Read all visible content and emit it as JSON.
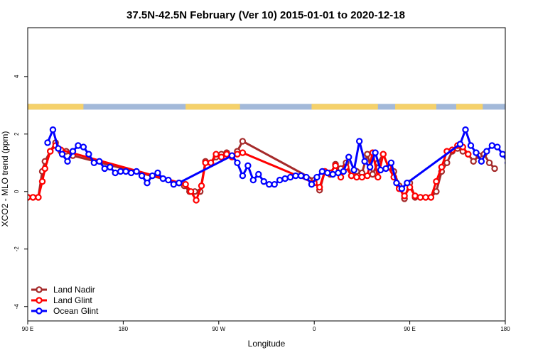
{
  "chart_data": {
    "type": "line",
    "title": "37.5N-42.5N February (Ver 10)   2015-01-01 to 2020-12-18",
    "xlabel": "Longitude",
    "ylabel": "XCO2 - MLO trend (ppm)",
    "xlim": [
      90,
      450
    ],
    "ylim": [
      -4.5,
      5.7
    ],
    "x_ticks": [
      {
        "value": 90,
        "label": "90 E"
      },
      {
        "value": 162,
        "label": "180"
      },
      {
        "value": 234,
        "label": "90 W"
      },
      {
        "value": 306,
        "label": "0"
      },
      {
        "value": 378,
        "label": "90 E"
      },
      {
        "value": 450,
        "label": "180"
      }
    ],
    "y_ticks": [
      {
        "value": -4,
        "label": "-4"
      },
      {
        "value": -2,
        "label": "-2"
      },
      {
        "value": 0,
        "label": "0"
      },
      {
        "value": 2,
        "label": "2"
      },
      {
        "value": 4,
        "label": "4"
      }
    ],
    "grid": false,
    "legend_position": "bottom-left",
    "land_strip": {
      "y_range": [
        2.85,
        3.05
      ],
      "ocean_color": "#a3b9d9",
      "land_color": "#f5d16b",
      "land_segments": [
        [
          90,
          131
        ],
        [
          101,
          132
        ],
        [
          209,
          250
        ],
        [
          304,
          354
        ],
        [
          367,
          398
        ],
        [
          413,
          433
        ]
      ]
    },
    "series": [
      {
        "name": "Land Nadir",
        "color": "#a52a2a",
        "x": [
          90,
          94,
          98,
          101,
          103,
          107,
          111,
          115,
          119,
          124,
          204,
          208,
          212,
          216,
          220,
          224,
          228,
          232,
          236,
          240,
          244,
          248,
          252,
          306,
          310,
          314,
          318,
          322,
          326,
          330,
          334,
          338,
          342,
          346,
          350,
          354,
          358,
          362,
          366,
          370,
          374,
          378,
          382,
          386,
          390,
          394,
          398,
          402,
          406,
          410,
          414,
          418,
          422,
          426,
          430,
          434,
          438,
          442
        ],
        "y": [
          -0.2,
          -0.2,
          -0.2,
          0.7,
          1.05,
          1.4,
          1.7,
          1.4,
          1.4,
          1.25,
          0.3,
          0.2,
          0.0,
          0.0,
          0.0,
          1.05,
          1.0,
          1.2,
          1.3,
          1.35,
          1.25,
          1.4,
          1.75,
          0.4,
          0.05,
          0.7,
          0.6,
          0.95,
          0.8,
          1.0,
          0.55,
          0.7,
          0.65,
          1.3,
          0.6,
          1.0,
          1.3,
          0.85,
          0.7,
          0.2,
          -0.25,
          0.3,
          -0.2,
          -0.2,
          -0.2,
          -0.2,
          0.0,
          0.7,
          1.0,
          1.4,
          1.5,
          1.4,
          1.3,
          1.05,
          1.25,
          1.3,
          1.0,
          0.8
        ]
      },
      {
        "name": "Land Glint",
        "color": "#ff0000",
        "x": [
          90,
          94,
          98,
          101,
          103,
          107,
          111,
          115,
          209,
          213,
          217,
          221,
          224,
          228,
          232,
          236,
          240,
          244,
          248,
          252,
          306,
          310,
          314,
          318,
          322,
          326,
          330,
          334,
          338,
          342,
          346,
          350,
          354,
          358,
          362,
          366,
          370,
          374,
          378,
          382,
          386,
          390,
          394,
          398,
          402,
          406,
          410,
          414,
          418,
          422
        ],
        "y": [
          -0.2,
          -0.2,
          -0.2,
          0.35,
          0.8,
          1.4,
          1.6,
          1.45,
          0.25,
          0.0,
          -0.3,
          0.2,
          1.0,
          1.0,
          1.3,
          1.2,
          1.3,
          1.2,
          1.3,
          1.35,
          0.3,
          0.15,
          0.7,
          0.65,
          0.9,
          0.5,
          0.85,
          0.55,
          0.5,
          0.5,
          0.55,
          1.35,
          0.5,
          1.3,
          0.85,
          0.5,
          0.1,
          -0.15,
          0.15,
          -0.15,
          -0.2,
          -0.2,
          -0.2,
          0.35,
          0.85,
          1.4,
          1.45,
          1.6,
          1.55,
          1.3
        ]
      },
      {
        "name": "Ocean Glint",
        "color": "#0000ff",
        "x": [
          105,
          109,
          113,
          116,
          120,
          124,
          128,
          132,
          136,
          140,
          144,
          148,
          152,
          156,
          160,
          164,
          168,
          172,
          176,
          180,
          184,
          188,
          192,
          196,
          200,
          204,
          244,
          248,
          252,
          256,
          260,
          264,
          268,
          272,
          276,
          280,
          284,
          288,
          292,
          296,
          300,
          304,
          308,
          312,
          316,
          320,
          324,
          328,
          332,
          336,
          340,
          344,
          348,
          352,
          356,
          360,
          364,
          368,
          372,
          376,
          416,
          420,
          424,
          428,
          432,
          436,
          440,
          444,
          448,
          452,
          456,
          460,
          464,
          468,
          472,
          476,
          480,
          484
        ],
        "y": [
          1.7,
          2.15,
          1.5,
          1.3,
          1.05,
          1.4,
          1.6,
          1.55,
          1.3,
          1.0,
          1.05,
          0.8,
          0.85,
          0.65,
          0.7,
          0.7,
          0.65,
          0.7,
          0.55,
          0.3,
          0.55,
          0.65,
          0.45,
          0.4,
          0.25,
          0.3,
          1.25,
          1.0,
          0.55,
          0.9,
          0.4,
          0.6,
          0.35,
          0.25,
          0.25,
          0.4,
          0.45,
          0.5,
          0.55,
          0.55,
          0.5,
          0.25,
          0.5,
          0.7,
          0.65,
          0.6,
          0.65,
          0.7,
          1.2,
          0.75,
          1.75,
          1.05,
          0.85,
          1.35,
          0.75,
          0.8,
          1.0,
          0.3,
          0.1,
          0.3,
          1.65,
          2.15,
          1.6,
          1.35,
          1.05,
          1.4,
          1.6,
          1.55,
          1.3,
          1.0,
          1.05,
          0.8,
          0.85,
          0.65,
          0.7,
          0.7,
          0.65,
          0.7
        ]
      }
    ]
  }
}
